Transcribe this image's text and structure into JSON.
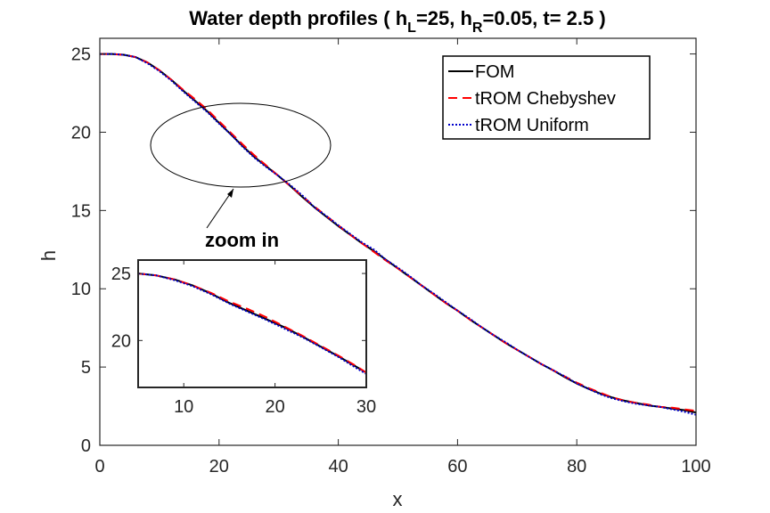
{
  "chart_data": [
    {
      "type": "line",
      "title": "Water depth profiles ( h",
      "title_sub1": "L",
      "title_mid": "=25, h",
      "title_sub2": "R",
      "title_end": "=0.05, t= 2.5 )",
      "xlabel": "x",
      "ylabel": "h",
      "xlim": [
        0,
        100
      ],
      "ylim": [
        0,
        26
      ],
      "xticks": [
        0,
        20,
        40,
        60,
        80,
        100
      ],
      "yticks": [
        0,
        5,
        10,
        15,
        20,
        25
      ],
      "legend_position": "top-right",
      "annotation": "zoom in",
      "x": [
        0,
        2,
        4,
        6,
        8,
        10,
        12,
        14,
        16,
        18,
        20,
        22,
        24,
        26,
        28,
        30,
        32,
        34,
        36,
        38,
        40,
        42,
        44,
        46,
        48,
        50,
        52,
        54,
        56,
        58,
        60,
        62,
        64,
        66,
        68,
        70,
        72,
        74,
        76,
        78,
        80,
        82,
        84,
        86,
        88,
        90,
        92,
        94,
        96,
        98,
        100
      ],
      "series": [
        {
          "name": "FOM",
          "color": "#000000",
          "style": "solid",
          "values": [
            25.0,
            25.0,
            24.95,
            24.8,
            24.45,
            23.95,
            23.35,
            22.65,
            22.0,
            21.35,
            20.6,
            19.85,
            19.1,
            18.4,
            17.8,
            17.2,
            16.55,
            15.85,
            15.2,
            14.6,
            14.0,
            13.45,
            12.9,
            12.4,
            11.85,
            11.3,
            10.75,
            10.2,
            9.65,
            9.1,
            8.6,
            8.05,
            7.55,
            7.05,
            6.55,
            6.1,
            5.65,
            5.2,
            4.8,
            4.35,
            3.95,
            3.6,
            3.3,
            3.05,
            2.85,
            2.7,
            2.55,
            2.45,
            2.35,
            2.25,
            2.1
          ]
        },
        {
          "name": "tROM Chebyshev",
          "color": "#ff0000",
          "style": "dashed",
          "values": [
            25.0,
            25.0,
            24.95,
            24.8,
            24.45,
            23.95,
            23.35,
            22.7,
            22.1,
            21.45,
            20.7,
            19.95,
            19.2,
            18.5,
            17.85,
            17.2,
            16.55,
            15.9,
            15.25,
            14.65,
            14.05,
            13.45,
            12.9,
            12.35,
            11.8,
            11.3,
            10.75,
            10.2,
            9.65,
            9.1,
            8.6,
            8.05,
            7.55,
            7.05,
            6.55,
            6.1,
            5.65,
            5.2,
            4.8,
            4.4,
            4.0,
            3.65,
            3.35,
            3.05,
            2.85,
            2.7,
            2.6,
            2.45,
            2.4,
            2.3,
            2.2
          ]
        },
        {
          "name": "tROM Uniform",
          "color": "#0000cc",
          "style": "dotted",
          "values": [
            25.0,
            25.0,
            24.95,
            24.8,
            24.4,
            23.9,
            23.3,
            22.6,
            21.95,
            21.3,
            20.55,
            19.85,
            19.05,
            18.35,
            17.75,
            17.2,
            16.6,
            15.95,
            15.2,
            14.65,
            14.05,
            13.5,
            12.95,
            12.5,
            11.85,
            11.35,
            10.8,
            10.2,
            9.7,
            9.15,
            8.6,
            8.1,
            7.55,
            7.05,
            6.6,
            6.1,
            5.65,
            5.2,
            4.8,
            4.4,
            3.95,
            3.6,
            3.25,
            3.0,
            2.8,
            2.65,
            2.55,
            2.45,
            2.3,
            2.15,
            1.95
          ]
        }
      ]
    },
    {
      "type": "line",
      "role": "inset",
      "xlim": [
        5,
        30
      ],
      "ylim": [
        16.5,
        26
      ],
      "xticks": [
        10,
        20,
        30
      ],
      "yticks": [
        20,
        25
      ],
      "x": [
        5,
        7,
        9,
        11,
        13,
        15,
        17,
        19,
        21,
        23,
        25,
        27,
        29,
        30
      ],
      "series": [
        {
          "name": "FOM",
          "color": "#000000",
          "style": "solid",
          "values": [
            25.0,
            24.85,
            24.55,
            24.1,
            23.5,
            22.8,
            22.2,
            21.6,
            21.0,
            20.3,
            19.55,
            18.8,
            18.0,
            17.6
          ]
        },
        {
          "name": "tROM Chebyshev",
          "color": "#ff0000",
          "style": "dashed",
          "values": [
            25.0,
            24.85,
            24.55,
            24.1,
            23.55,
            22.9,
            22.35,
            21.75,
            21.05,
            20.35,
            19.6,
            18.85,
            18.05,
            17.6
          ]
        },
        {
          "name": "tROM Uniform",
          "color": "#0000cc",
          "style": "dotted",
          "values": [
            25.0,
            24.85,
            24.5,
            24.05,
            23.45,
            22.75,
            22.15,
            21.55,
            20.9,
            20.25,
            19.5,
            18.75,
            17.9,
            17.5
          ]
        }
      ]
    }
  ]
}
